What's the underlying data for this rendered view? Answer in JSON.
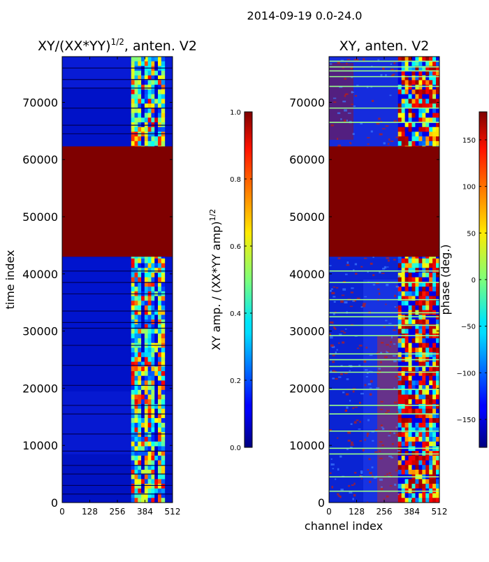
{
  "figure": {
    "suptitle": "2014-09-19 0.0-24.0"
  },
  "chart_data": [
    {
      "type": "heatmap",
      "id": "amp",
      "title_main": "XY/(XX*YY)",
      "title_exp": "1/2",
      "title_suffix": ", anten. V2",
      "ylabel": "time index",
      "xlabel": "",
      "xlim": [
        0,
        512
      ],
      "ylim": [
        0,
        78000
      ],
      "xticks": [
        "0",
        "128",
        "256",
        "384",
        "512"
      ],
      "yticks": [
        "0",
        "10000",
        "20000",
        "30000",
        "40000",
        "50000",
        "60000",
        "70000"
      ],
      "colorbar": {
        "label_main": "XY amp. / (XX*YY amp)",
        "label_exp": "1/2",
        "range": [
          0.0,
          1.0
        ],
        "ticks": [
          "0.0",
          "0.2",
          "0.4",
          "0.6",
          "0.8",
          "1.0"
        ]
      },
      "regions": [
        {
          "name": "saturated-block",
          "t_start": 43000,
          "t_end": 62300,
          "value": 1.0
        },
        {
          "name": "active-channels",
          "ch_start": 320,
          "ch_end": 475,
          "value_range": [
            0.2,
            0.9
          ]
        },
        {
          "name": "background",
          "value_range": [
            0.0,
            0.15
          ]
        }
      ],
      "flag_rows": [
        1500,
        3000,
        5000,
        6500,
        9000,
        12000,
        15500,
        17000,
        20500,
        24000,
        27500,
        30500,
        31500,
        33500,
        36500,
        38500,
        40500,
        64500,
        66000,
        69000,
        72500,
        74000,
        76000
      ]
    },
    {
      "type": "heatmap",
      "id": "phase",
      "title": "XY, anten. V2",
      "ylabel": "",
      "xlabel": "channel index",
      "xlim": [
        0,
        512
      ],
      "ylim": [
        0,
        78000
      ],
      "xticks": [
        "0",
        "128",
        "256",
        "384",
        "512"
      ],
      "yticks": [
        "0",
        "10000",
        "20000",
        "30000",
        "40000",
        "50000",
        "60000",
        "70000"
      ],
      "colorbar": {
        "label": "phase (deg.)",
        "range": [
          -180,
          180
        ],
        "ticks": [
          "−150",
          "−100",
          "−50",
          "0",
          "50",
          "100",
          "150"
        ],
        "tick_values": [
          -150,
          -100,
          -50,
          0,
          50,
          100,
          150
        ]
      },
      "regions": [
        {
          "name": "saturated-block",
          "t_start": 43000,
          "t_end": 62300,
          "value": 180
        },
        {
          "name": "active-channels",
          "ch_start": 320,
          "ch_end": 512,
          "value_range": [
            -180,
            180
          ]
        },
        {
          "name": "low-channel-noise",
          "ch_start": 0,
          "ch_end": 320,
          "value_range": [
            -150,
            180
          ]
        }
      ],
      "flag_rows": [
        2000,
        4500,
        8500,
        9500,
        12500,
        15500,
        17000,
        19800,
        22800,
        23800,
        25000,
        26000,
        29200,
        31000,
        32500,
        33200,
        35500,
        38500,
        40500,
        66500,
        69000,
        72800,
        74500,
        75500,
        76200,
        77200
      ]
    }
  ]
}
